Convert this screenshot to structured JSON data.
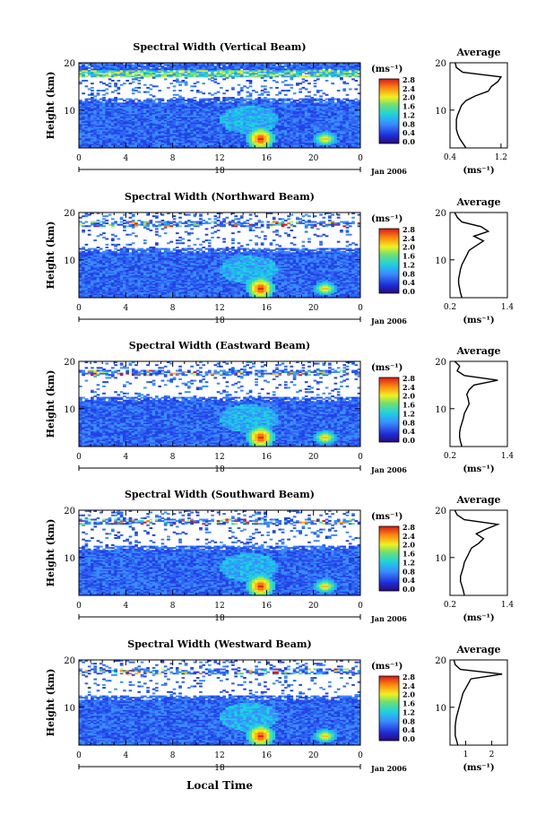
{
  "figure": {
    "xlabel": "Local Time",
    "date_label": "Jan 2006",
    "day_label": "18",
    "ylabel": "Height (km)",
    "colorbar_unit": "(ms⁻¹)",
    "colorbar_ticks": [
      "0.0",
      "0.4",
      "0.8",
      "1.2",
      "1.6",
      "2.0",
      "2.4",
      "2.8"
    ],
    "avg_title": "Average",
    "avg_xlabel": "(ms⁻¹)"
  },
  "colors": {
    "low": "#1e2ad6",
    "mid": "#3a8cff",
    "high": "#d61a1a",
    "background": "#ffffff"
  },
  "chart_data": [
    {
      "type": "heatmap",
      "title": "Spectral Width (Vertical Beam)",
      "x_ticks": [
        "0",
        "4",
        "8",
        "12",
        "16",
        "20",
        "0"
      ],
      "xlim": [
        0,
        24
      ],
      "ylim": [
        2,
        20
      ],
      "y_ticks": [
        "10",
        "20"
      ],
      "colorbar_range": [
        0.0,
        2.8
      ],
      "average_profile": {
        "x_ticks": [
          "0.4",
          "1.2"
        ],
        "xlim": [
          0.4,
          1.3
        ],
        "heights": [
          2,
          3,
          4,
          5,
          6,
          7,
          8,
          9,
          10,
          11,
          12,
          13,
          14,
          15,
          16,
          17,
          18,
          19,
          20
        ],
        "values": [
          0.65,
          0.6,
          0.55,
          0.52,
          0.5,
          0.5,
          0.5,
          0.52,
          0.55,
          0.58,
          0.65,
          0.8,
          1.0,
          1.05,
          1.15,
          1.2,
          0.6,
          0.5,
          0.48
        ]
      }
    },
    {
      "type": "heatmap",
      "title": "Spectral Width (Northward Beam)",
      "x_ticks": [
        "0",
        "4",
        "8",
        "12",
        "16",
        "20",
        "0"
      ],
      "xlim": [
        0,
        24
      ],
      "ylim": [
        2,
        20
      ],
      "y_ticks": [
        "10",
        "20"
      ],
      "colorbar_range": [
        0.0,
        2.8
      ],
      "average_profile": {
        "x_ticks": [
          "0.2",
          "1.4"
        ],
        "xlim": [
          0.2,
          1.4
        ],
        "heights": [
          2,
          3,
          4,
          5,
          6,
          7,
          8,
          9,
          10,
          11,
          12,
          13,
          14,
          15,
          16,
          17,
          18,
          19,
          20
        ],
        "values": [
          0.45,
          0.42,
          0.4,
          0.38,
          0.38,
          0.4,
          0.42,
          0.45,
          0.5,
          0.55,
          0.6,
          0.75,
          0.9,
          0.7,
          1.0,
          0.85,
          0.45,
          0.35,
          0.3
        ]
      }
    },
    {
      "type": "heatmap",
      "title": "Spectral Width (Eastward Beam)",
      "x_ticks": [
        "0",
        "4",
        "8",
        "12",
        "16",
        "20",
        "0"
      ],
      "xlim": [
        0,
        24
      ],
      "ylim": [
        2,
        20
      ],
      "y_ticks": [
        "10",
        "20"
      ],
      "colorbar_range": [
        0.0,
        2.8
      ],
      "average_profile": {
        "x_ticks": [
          "0.2",
          "1.4"
        ],
        "xlim": [
          0.2,
          1.4
        ],
        "heights": [
          2,
          3,
          4,
          5,
          6,
          7,
          8,
          9,
          10,
          11,
          12,
          13,
          14,
          15,
          16,
          17,
          18,
          19,
          20
        ],
        "values": [
          0.45,
          0.42,
          0.4,
          0.4,
          0.42,
          0.45,
          0.48,
          0.5,
          0.55,
          0.6,
          0.58,
          0.55,
          0.6,
          0.7,
          1.2,
          0.5,
          0.35,
          0.4,
          0.3
        ]
      }
    },
    {
      "type": "heatmap",
      "title": "Spectral Width (Southward Beam)",
      "x_ticks": [
        "0",
        "4",
        "8",
        "12",
        "16",
        "20",
        "0"
      ],
      "xlim": [
        0,
        24
      ],
      "ylim": [
        2,
        20
      ],
      "y_ticks": [
        "10",
        "20"
      ],
      "colorbar_range": [
        0.0,
        2.8
      ],
      "average_profile": {
        "x_ticks": [
          "0.2",
          "1.4"
        ],
        "xlim": [
          0.2,
          1.4
        ],
        "heights": [
          2,
          3,
          4,
          5,
          6,
          7,
          8,
          9,
          10,
          11,
          12,
          13,
          14,
          15,
          16,
          17,
          18,
          19,
          20
        ],
        "values": [
          0.5,
          0.48,
          0.45,
          0.42,
          0.42,
          0.45,
          0.48,
          0.5,
          0.55,
          0.6,
          0.65,
          0.8,
          0.9,
          0.75,
          0.95,
          1.2,
          0.5,
          0.35,
          0.3
        ]
      }
    },
    {
      "type": "heatmap",
      "title": "Spectral Width (Westward Beam)",
      "x_ticks": [
        "0",
        "4",
        "8",
        "12",
        "16",
        "20",
        "0"
      ],
      "xlim": [
        0,
        24
      ],
      "ylim": [
        2,
        20
      ],
      "y_ticks": [
        "10",
        "20"
      ],
      "colorbar_range": [
        0.0,
        2.8
      ],
      "average_profile": {
        "x_ticks": [
          "1",
          "2"
        ],
        "xlim": [
          0.4,
          2.6
        ],
        "heights": [
          2,
          3,
          4,
          5,
          6,
          7,
          8,
          9,
          10,
          11,
          12,
          13,
          14,
          15,
          16,
          17,
          18,
          19,
          20
        ],
        "values": [
          0.7,
          0.65,
          0.6,
          0.6,
          0.6,
          0.62,
          0.65,
          0.7,
          0.75,
          0.8,
          0.85,
          0.9,
          1.0,
          1.1,
          1.2,
          2.4,
          0.8,
          0.6,
          0.55
        ]
      }
    }
  ]
}
